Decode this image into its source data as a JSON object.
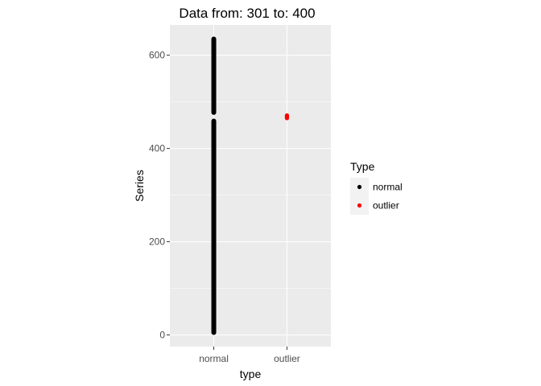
{
  "chart_data": {
    "type": "scatter",
    "title": "Data from:  301  to:  400",
    "xlabel": "type",
    "ylabel": "Series",
    "categories": [
      "normal",
      "outlier"
    ],
    "y_ticks": [
      0,
      200,
      400,
      600
    ],
    "ylim": [
      -25,
      665
    ],
    "grid": true,
    "legend": {
      "title": "Type",
      "position": "right",
      "entries": [
        {
          "label": "normal",
          "color": "#000000"
        },
        {
          "label": "outlier",
          "color": "#ff0000"
        }
      ]
    },
    "series": [
      {
        "name": "normal",
        "category": "normal",
        "color": "#000000",
        "ranges": [
          [
            0,
            464
          ],
          [
            472,
            640
          ]
        ]
      },
      {
        "name": "outlier",
        "category": "outlier",
        "color": "#ff0000",
        "values": [
          465,
          466,
          467,
          468,
          469,
          470,
          471
        ]
      }
    ]
  },
  "colors": {
    "panel_background": "#ebebeb",
    "grid_major": "#ffffff",
    "tick_color": "#333333"
  }
}
